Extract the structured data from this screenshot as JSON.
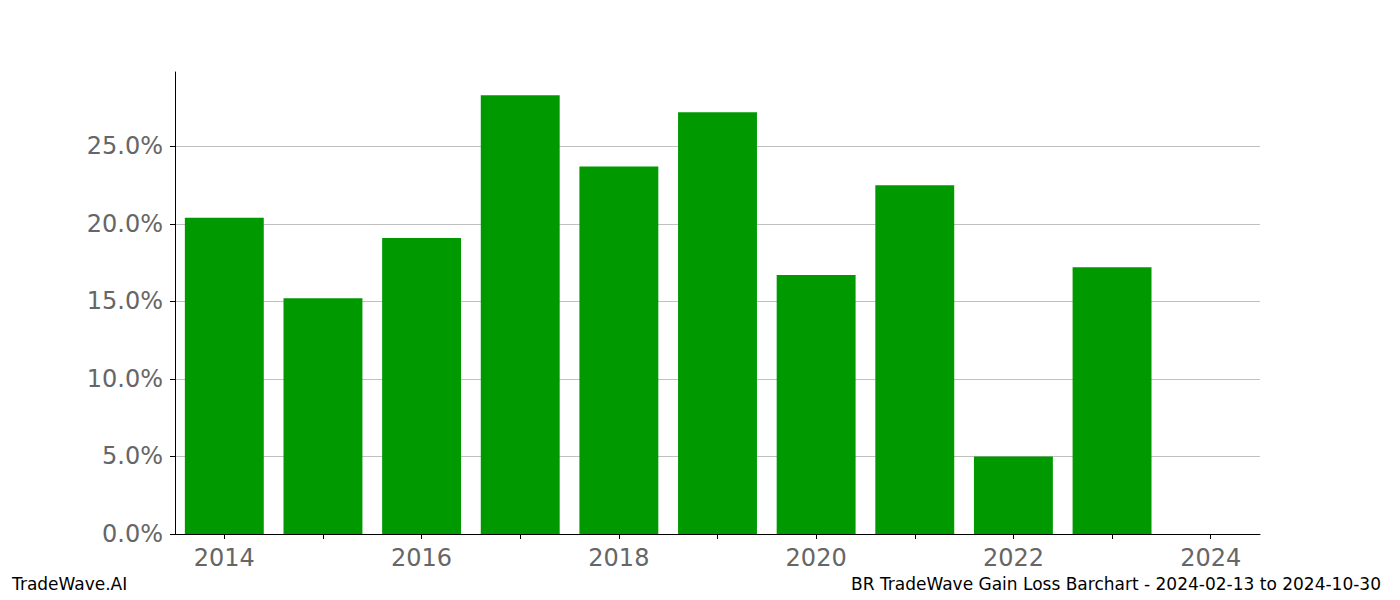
{
  "chart_data": {
    "type": "bar",
    "categories": [
      "2014",
      null,
      "2016",
      null,
      "2018",
      null,
      "2020",
      null,
      "2022",
      null,
      "2024"
    ],
    "values": [
      20.4,
      15.2,
      19.1,
      28.3,
      23.7,
      27.2,
      16.7,
      22.5,
      5.0,
      17.2,
      null
    ],
    "color": "#009900",
    "ylim": [
      0,
      29.8
    ],
    "yticks": [
      {
        "value": 0,
        "label": "0.0%"
      },
      {
        "value": 5,
        "label": "5.0%"
      },
      {
        "value": 10,
        "label": "10.0%"
      },
      {
        "value": 15,
        "label": "15.0%"
      },
      {
        "value": 20,
        "label": "20.0%"
      },
      {
        "value": 25,
        "label": "25.0%"
      }
    ],
    "grid": true,
    "annotations": [
      "TradeWave.AI",
      "BR TradeWave Gain Loss Barchart - 2024-02-13 to 2024-10-30"
    ]
  }
}
